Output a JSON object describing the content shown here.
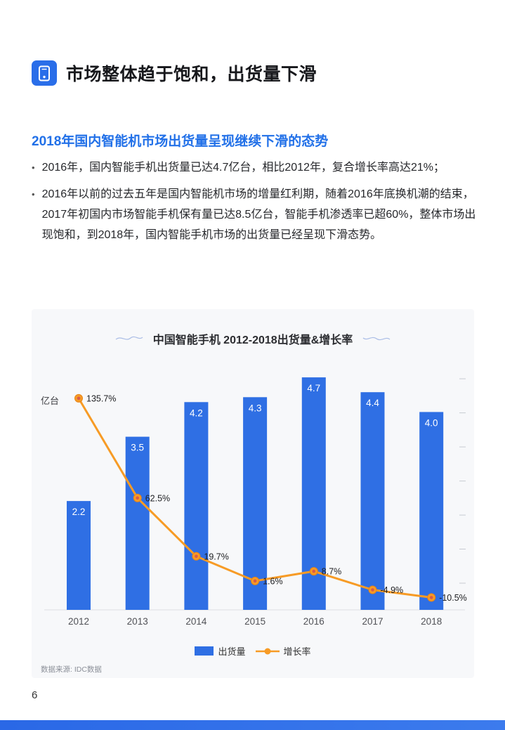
{
  "header": {
    "title": "市场整体趋于饱和，出货量下滑"
  },
  "section": {
    "heading": "2018年国内智能机市场出货量呈现继续下滑的态势",
    "bullets": [
      "2016年，国内智能手机出货量已达4.7亿台，相比2012年，复合增长率高达21%；",
      "2016年以前的过去五年是国内智能机市场的增量红利期，随着2016年底换机潮的结束，2017年初国内市场智能手机保有量已达8.5亿台，智能手机渗透率已超60%，整体市场出现饱和，到2018年，国内智能手机市场的出货量已经呈现下滑态势。"
    ]
  },
  "chart_data": {
    "type": "bar",
    "title": "中国智能手机 2012-2018出货量&增长率",
    "unit_label": "亿台",
    "categories": [
      "2012",
      "2013",
      "2014",
      "2015",
      "2016",
      "2017",
      "2018"
    ],
    "series": [
      {
        "name": "出货量",
        "type": "bar",
        "values": [
          2.2,
          3.5,
          4.2,
          4.3,
          4.7,
          4.4,
          4.0
        ],
        "color": "#2f6fe4"
      },
      {
        "name": "增长率",
        "type": "line",
        "values": [
          135.7,
          62.5,
          19.7,
          1.6,
          8.7,
          -4.9,
          -10.5
        ],
        "labels": [
          "135.7%",
          "62.5%",
          "19.7%",
          "1.6%",
          "8.7%",
          "-4.9%",
          "-10.5%"
        ],
        "color": "#f79b25"
      }
    ],
    "legend_position": "bottom",
    "source": "数据来源: IDC数据"
  },
  "footer": {
    "page_number": "6"
  }
}
